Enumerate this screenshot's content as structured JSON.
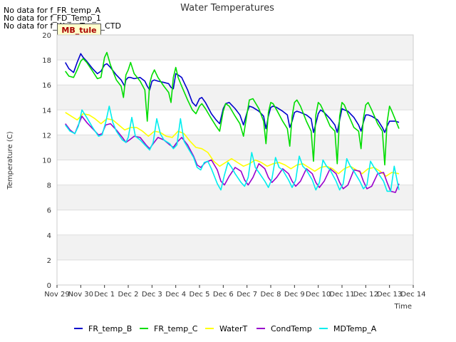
{
  "messages": [
    "No data for f_FR_temp_A",
    "No data for f_FD_Temp_1",
    "No data for f_WaterTemp_CTD"
  ],
  "site_badge": "MB_tule",
  "chart_data": {
    "type": "line",
    "title": "Water Temperatures",
    "xlabel": "Time",
    "ylabel": "Temperature (C)",
    "ylim": [
      0,
      20
    ],
    "yticks": [
      0,
      2,
      4,
      6,
      8,
      10,
      12,
      14,
      16,
      18,
      20
    ],
    "xlim": [
      0,
      15
    ],
    "xticks": [
      {
        "x": 0,
        "label": "Nov 29"
      },
      {
        "x": 1,
        "label": "Nov 30"
      },
      {
        "x": 2,
        "label": "Dec 1"
      },
      {
        "x": 3,
        "label": "Dec 2"
      },
      {
        "x": 4,
        "label": "Dec 3"
      },
      {
        "x": 5,
        "label": "Dec 4"
      },
      {
        "x": 6,
        "label": "Dec 5"
      },
      {
        "x": 7,
        "label": "Dec 6"
      },
      {
        "x": 8,
        "label": "Dec 7"
      },
      {
        "x": 9,
        "label": "Dec 8"
      },
      {
        "x": 10,
        "label": "Dec 9"
      },
      {
        "x": 11,
        "label": "Dec 10"
      },
      {
        "x": 12,
        "label": "Dec 11"
      },
      {
        "x": 13,
        "label": "Dec 12"
      },
      {
        "x": 14,
        "label": "Dec 13"
      },
      {
        "x": 15,
        "label": "Dec 14"
      }
    ],
    "grid": true,
    "legend_position": "bottom",
    "series": [
      {
        "name": "FR_temp_B",
        "color": "#0000cc",
        "x": [
          0.35,
          0.5,
          0.7,
          0.85,
          1.0,
          1.1,
          1.25,
          1.5,
          1.7,
          1.85,
          2.0,
          2.1,
          2.25,
          2.5,
          2.7,
          2.85,
          2.9,
          3.0,
          3.1,
          3.25,
          3.5,
          3.7,
          3.8,
          3.9,
          4.0,
          4.1,
          4.25,
          4.5,
          4.7,
          4.8,
          4.9,
          5.0,
          5.1,
          5.25,
          5.5,
          5.7,
          5.85,
          6.0,
          6.1,
          6.25,
          6.5,
          6.7,
          6.85,
          7.0,
          7.1,
          7.25,
          7.5,
          7.7,
          7.85,
          8.0,
          8.1,
          8.25,
          8.5,
          8.7,
          8.8,
          8.9,
          9.0,
          9.1,
          9.25,
          9.5,
          9.7,
          9.8,
          9.9,
          10.0,
          10.1,
          10.25,
          10.5,
          10.7,
          10.8,
          10.9,
          11.0,
          11.1,
          11.25,
          11.5,
          11.7,
          11.8,
          11.9,
          12.0,
          12.1,
          12.25,
          12.5,
          12.7,
          12.8,
          12.9,
          13.0,
          13.1,
          13.25,
          13.5,
          13.7,
          13.8,
          13.9,
          14.0,
          14.1,
          14.25,
          14.4
        ],
        "y": [
          17.8,
          17.3,
          17.0,
          17.8,
          18.5,
          18.2,
          17.9,
          17.3,
          16.9,
          17.1,
          17.6,
          17.7,
          17.4,
          16.8,
          16.4,
          15.9,
          16.4,
          16.6,
          16.6,
          16.5,
          16.6,
          16.3,
          15.9,
          15.6,
          16.3,
          16.4,
          16.3,
          16.2,
          16.1,
          15.8,
          15.7,
          16.9,
          16.8,
          16.6,
          15.6,
          14.6,
          14.3,
          14.9,
          15.0,
          14.6,
          13.7,
          13.2,
          12.9,
          14.1,
          14.5,
          14.6,
          14.1,
          13.6,
          12.8,
          13.8,
          14.3,
          14.2,
          13.9,
          13.5,
          12.5,
          13.5,
          14.2,
          14.3,
          14.2,
          13.9,
          13.6,
          12.6,
          13.1,
          13.8,
          13.9,
          13.8,
          13.6,
          13.3,
          12.2,
          12.9,
          13.7,
          14.0,
          13.8,
          13.3,
          12.8,
          12.2,
          13.2,
          14.1,
          14.0,
          13.9,
          13.4,
          12.8,
          12.3,
          13.0,
          13.6,
          13.6,
          13.5,
          13.2,
          12.6,
          12.2,
          12.7,
          13.1,
          13.1,
          13.1,
          13.0
        ]
      },
      {
        "name": "FR_temp_C",
        "color": "#00dd00",
        "x": [
          0.35,
          0.5,
          0.7,
          0.85,
          1.0,
          1.1,
          1.25,
          1.5,
          1.7,
          1.85,
          2.0,
          2.1,
          2.25,
          2.5,
          2.7,
          2.8,
          2.9,
          3.0,
          3.1,
          3.25,
          3.5,
          3.7,
          3.8,
          3.9,
          4.0,
          4.1,
          4.25,
          4.5,
          4.7,
          4.8,
          4.9,
          5.0,
          5.1,
          5.25,
          5.5,
          5.7,
          5.85,
          6.0,
          6.1,
          6.25,
          6.5,
          6.7,
          6.85,
          7.0,
          7.1,
          7.25,
          7.5,
          7.7,
          7.85,
          8.0,
          8.1,
          8.25,
          8.5,
          8.7,
          8.8,
          8.9,
          9.0,
          9.1,
          9.25,
          9.5,
          9.7,
          9.8,
          9.9,
          10.0,
          10.1,
          10.25,
          10.5,
          10.7,
          10.8,
          10.9,
          11.0,
          11.1,
          11.25,
          11.5,
          11.7,
          11.8,
          11.9,
          12.0,
          12.1,
          12.25,
          12.5,
          12.7,
          12.8,
          12.9,
          13.0,
          13.1,
          13.25,
          13.5,
          13.7,
          13.8,
          13.9,
          14.0,
          14.1,
          14.25,
          14.4
        ],
        "y": [
          17.1,
          16.7,
          16.6,
          17.2,
          17.9,
          18.1,
          17.8,
          17.1,
          16.5,
          16.6,
          18.2,
          18.6,
          17.6,
          16.4,
          15.9,
          15.0,
          16.8,
          17.2,
          17.8,
          16.9,
          16.3,
          15.6,
          13.1,
          16.1,
          16.8,
          17.2,
          16.6,
          15.9,
          15.4,
          14.6,
          16.6,
          17.4,
          16.6,
          15.9,
          14.8,
          14.0,
          13.7,
          14.3,
          14.5,
          14.1,
          13.3,
          12.7,
          12.3,
          13.9,
          14.5,
          14.3,
          13.5,
          12.9,
          11.9,
          13.7,
          14.8,
          14.9,
          14.1,
          13.1,
          11.3,
          13.8,
          14.6,
          14.5,
          14.0,
          13.1,
          12.5,
          11.1,
          13.5,
          14.6,
          14.8,
          14.3,
          13.1,
          12.3,
          9.9,
          13.6,
          14.6,
          14.4,
          13.8,
          12.7,
          12.3,
          9.7,
          13.5,
          14.6,
          14.4,
          13.7,
          12.6,
          12.3,
          10.9,
          13.3,
          14.4,
          14.6,
          14.0,
          12.9,
          12.3,
          9.6,
          13.0,
          14.3,
          13.9,
          13.2,
          12.5
        ]
      },
      {
        "name": "WaterT",
        "color": "#ffff00",
        "x": [
          0.35,
          0.6,
          0.85,
          1.1,
          1.35,
          1.6,
          1.85,
          2.1,
          2.35,
          2.6,
          2.85,
          3.1,
          3.35,
          3.6,
          3.85,
          4.1,
          4.35,
          4.6,
          4.85,
          5.1,
          5.35,
          5.6,
          5.85,
          6.1,
          6.35,
          6.6,
          6.85,
          7.1,
          7.35,
          7.6,
          7.85,
          8.1,
          8.35,
          8.6,
          8.85,
          9.1,
          9.35,
          9.6,
          9.85,
          10.1,
          10.35,
          10.6,
          10.85,
          11.1,
          11.35,
          11.6,
          11.85,
          12.1,
          12.35,
          12.6,
          12.85,
          13.1,
          13.35,
          13.6,
          13.85,
          14.1,
          14.4
        ],
        "y": [
          13.8,
          13.5,
          13.2,
          13.7,
          13.6,
          13.3,
          12.9,
          13.3,
          13.2,
          12.8,
          12.4,
          12.6,
          12.6,
          12.3,
          11.9,
          12.3,
          12.2,
          11.9,
          11.8,
          12.3,
          12.1,
          11.5,
          11.0,
          10.9,
          10.6,
          9.9,
          9.5,
          9.8,
          10.1,
          9.8,
          9.5,
          9.7,
          10.0,
          9.8,
          9.5,
          9.7,
          9.8,
          9.6,
          9.3,
          9.6,
          9.7,
          9.4,
          9.1,
          9.4,
          9.5,
          9.3,
          8.9,
          9.3,
          9.5,
          9.2,
          8.9,
          9.3,
          9.4,
          9.1,
          8.7,
          9.0,
          8.9
        ]
      },
      {
        "name": "CondTemp",
        "color": "#9900cc",
        "x": [
          0.35,
          0.55,
          0.75,
          0.9,
          1.05,
          1.25,
          1.5,
          1.75,
          1.9,
          2.05,
          2.25,
          2.5,
          2.75,
          2.9,
          3.05,
          3.25,
          3.5,
          3.75,
          3.9,
          4.05,
          4.25,
          4.5,
          4.75,
          4.9,
          5.05,
          5.25,
          5.5,
          5.75,
          5.9,
          6.05,
          6.25,
          6.5,
          6.75,
          6.9,
          7.05,
          7.25,
          7.5,
          7.75,
          7.9,
          8.05,
          8.25,
          8.5,
          8.75,
          8.9,
          9.05,
          9.25,
          9.5,
          9.75,
          9.9,
          10.05,
          10.25,
          10.5,
          10.75,
          10.9,
          11.05,
          11.25,
          11.5,
          11.75,
          11.9,
          12.05,
          12.25,
          12.5,
          12.75,
          12.9,
          13.05,
          13.25,
          13.5,
          13.75,
          13.9,
          14.05,
          14.25,
          14.4
        ],
        "y": [
          12.9,
          12.4,
          12.1,
          12.8,
          13.5,
          13.0,
          12.5,
          12.0,
          12.1,
          12.8,
          12.9,
          12.4,
          11.8,
          11.4,
          11.6,
          11.9,
          11.8,
          11.2,
          10.9,
          11.3,
          11.8,
          11.6,
          11.2,
          11.0,
          11.4,
          11.8,
          11.2,
          10.3,
          9.6,
          9.4,
          9.8,
          10.0,
          9.2,
          8.3,
          8.0,
          8.7,
          9.4,
          9.1,
          8.4,
          8.0,
          8.6,
          9.7,
          9.3,
          8.6,
          8.2,
          8.6,
          9.3,
          8.9,
          8.3,
          7.9,
          8.3,
          9.3,
          8.9,
          8.2,
          7.8,
          8.3,
          9.3,
          8.9,
          8.2,
          7.7,
          8.0,
          9.2,
          9.1,
          8.3,
          7.7,
          7.9,
          8.9,
          9.0,
          8.2,
          7.5,
          7.4,
          8.1
        ]
      },
      {
        "name": "MDTemp_A",
        "color": "#00eeee",
        "x": [
          0.35,
          0.55,
          0.75,
          0.9,
          1.05,
          1.25,
          1.5,
          1.75,
          1.9,
          2.05,
          2.2,
          2.35,
          2.5,
          2.75,
          2.9,
          3.0,
          3.15,
          3.3,
          3.5,
          3.75,
          3.9,
          4.05,
          4.2,
          4.35,
          4.5,
          4.75,
          4.9,
          5.05,
          5.2,
          5.35,
          5.5,
          5.75,
          5.9,
          6.05,
          6.2,
          6.35,
          6.5,
          6.75,
          6.9,
          7.05,
          7.2,
          7.35,
          7.5,
          7.75,
          7.9,
          8.05,
          8.2,
          8.35,
          8.5,
          8.75,
          8.9,
          9.05,
          9.2,
          9.35,
          9.5,
          9.75,
          9.9,
          10.05,
          10.2,
          10.35,
          10.5,
          10.75,
          10.9,
          11.05,
          11.2,
          11.35,
          11.5,
          11.75,
          11.9,
          12.05,
          12.2,
          12.35,
          12.5,
          12.75,
          12.9,
          13.05,
          13.2,
          13.35,
          13.5,
          13.75,
          13.9,
          14.05,
          14.2,
          14.4
        ],
        "y": [
          12.8,
          12.3,
          12.1,
          12.7,
          14.0,
          13.4,
          12.6,
          11.9,
          12.0,
          13.0,
          14.3,
          13.0,
          12.3,
          11.6,
          11.4,
          11.8,
          13.4,
          11.9,
          11.6,
          11.1,
          10.8,
          11.4,
          13.3,
          12.1,
          11.6,
          11.3,
          10.9,
          11.2,
          13.3,
          11.5,
          11.0,
          10.2,
          9.4,
          9.2,
          9.8,
          9.9,
          9.3,
          8.1,
          7.6,
          8.8,
          9.8,
          9.4,
          8.9,
          8.2,
          7.9,
          8.6,
          10.6,
          9.4,
          9.0,
          8.3,
          7.8,
          8.5,
          10.2,
          9.4,
          9.2,
          8.4,
          7.8,
          8.4,
          10.3,
          9.5,
          9.2,
          8.4,
          7.6,
          8.2,
          10.0,
          9.5,
          9.2,
          8.3,
          7.6,
          8.1,
          10.1,
          9.5,
          9.1,
          8.3,
          7.7,
          8.0,
          9.9,
          9.4,
          9.0,
          8.3,
          7.5,
          7.5,
          9.5,
          7.6
        ]
      }
    ]
  }
}
